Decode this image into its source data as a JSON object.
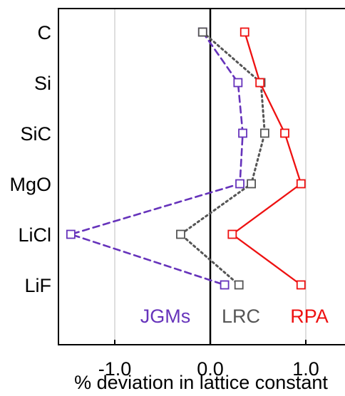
{
  "chart_data": {
    "type": "line",
    "orientation": "horizontal",
    "title": "",
    "xlabel": "% deviation in lattice constant",
    "ylabel": "",
    "xlim": [
      -1.58,
      1.58
    ],
    "xticks": [
      {
        "value": -1.0,
        "label": "-1.0"
      },
      {
        "value": 0.0,
        "label": "0.0"
      },
      {
        "value": 1.0,
        "label": "1.0"
      }
    ],
    "categories": [
      "C",
      "Si",
      "SiC",
      "MgO",
      "LiCl",
      "LiF"
    ],
    "grid": "vertical lines at -1.0 and 1.0; solid line at 0.0",
    "legend_placement": "bottom, inside plot",
    "series": [
      {
        "name": "JGMs",
        "color": "#6633bb",
        "line_style": "dashed",
        "marker": "open-square",
        "values": [
          -0.08,
          0.29,
          0.34,
          0.31,
          -1.46,
          0.15
        ]
      },
      {
        "name": "LRC",
        "color": "#555555",
        "line_style": "dotted",
        "marker": "open-square",
        "values": [
          -0.08,
          0.53,
          0.57,
          0.43,
          -0.31,
          0.3
        ]
      },
      {
        "name": "RPA",
        "color": "#ee1111",
        "line_style": "solid",
        "marker": "open-square",
        "values": [
          0.36,
          0.52,
          0.78,
          0.95,
          0.23,
          0.95
        ]
      }
    ]
  }
}
